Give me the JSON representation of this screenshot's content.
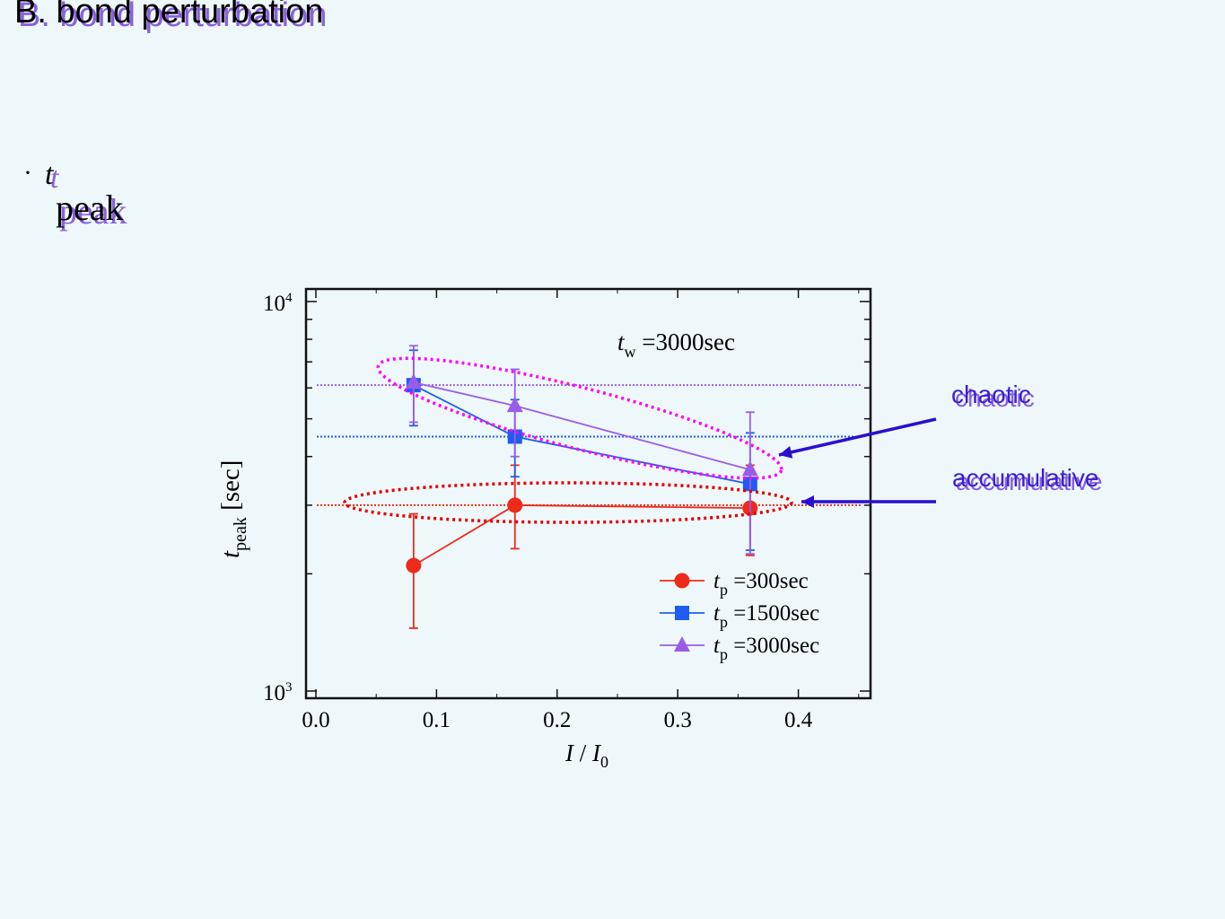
{
  "slide": {
    "title": "B. bond perturbation",
    "bullet_marker": "·",
    "bullet_symbol": "t",
    "bullet_subscript": "peak",
    "annotations": [
      {
        "label": "chaotic",
        "color": "#3a1fd0"
      },
      {
        "label": "accumulative",
        "color": "#3a1fd0"
      }
    ],
    "colors": {
      "background": "#eef8fb",
      "text_shadow": "#8a5fe0",
      "arrow": "#2a0fd0",
      "chaotic_ellipse": "#ff00ff",
      "accumulative_ellipse": "#e00000"
    }
  },
  "chart_data": {
    "type": "scatter",
    "x_scale": "linear",
    "y_scale": "log",
    "xlim": [
      0.0,
      0.45
    ],
    "ylim": [
      1000,
      10000
    ],
    "x_ticks": [
      "0.0",
      "0.1",
      "0.2",
      "0.3",
      "0.4"
    ],
    "x_tick_values": [
      0.0,
      0.1,
      0.2,
      0.3,
      0.4
    ],
    "y_tick_labels": [
      {
        "base": "10",
        "exp": "3",
        "value": 1000
      },
      {
        "base": "10",
        "exp": "4",
        "value": 10000
      }
    ],
    "xlabel": {
      "main": "I / I",
      "sub": "0"
    },
    "ylabel": {
      "main": "t",
      "sub": "peak",
      "unit": "[sec]"
    },
    "annotation": {
      "main": "t",
      "sub": "w",
      "rest": "=3000sec"
    },
    "grid": false,
    "legend_position": "bottom-right",
    "series": [
      {
        "name": {
          "main": "t",
          "sub": "p",
          "rest": "=300sec"
        },
        "color": "#ee2a1b",
        "marker": "circle",
        "x": [
          0.081,
          0.165,
          0.36
        ],
        "y": [
          2100,
          3000,
          2950
        ],
        "y_err_low": [
          1450,
          2320,
          2230
        ],
        "y_err_high": [
          2850,
          3800,
          3800
        ],
        "reference_level": 3000
      },
      {
        "name": {
          "main": "t",
          "sub": "p",
          "rest": "=1500sec"
        },
        "color": "#1f5cf0",
        "marker": "square",
        "x": [
          0.081,
          0.165,
          0.36
        ],
        "y": [
          6100,
          4500,
          3400
        ],
        "y_err_low": [
          4800,
          3550,
          2300
        ],
        "y_err_high": [
          7500,
          5600,
          4600
        ],
        "reference_level": 4500
      },
      {
        "name": {
          "main": "t",
          "sub": "p",
          "rest": "=3000sec"
        },
        "color": "#9a5ce8",
        "marker": "triangle",
        "x": [
          0.081,
          0.165,
          0.36
        ],
        "y": [
          6200,
          5400,
          3700
        ],
        "y_err_low": [
          4900,
          4000,
          2250
        ],
        "y_err_high": [
          7700,
          6700,
          5200
        ],
        "reference_level": 6100
      }
    ]
  }
}
